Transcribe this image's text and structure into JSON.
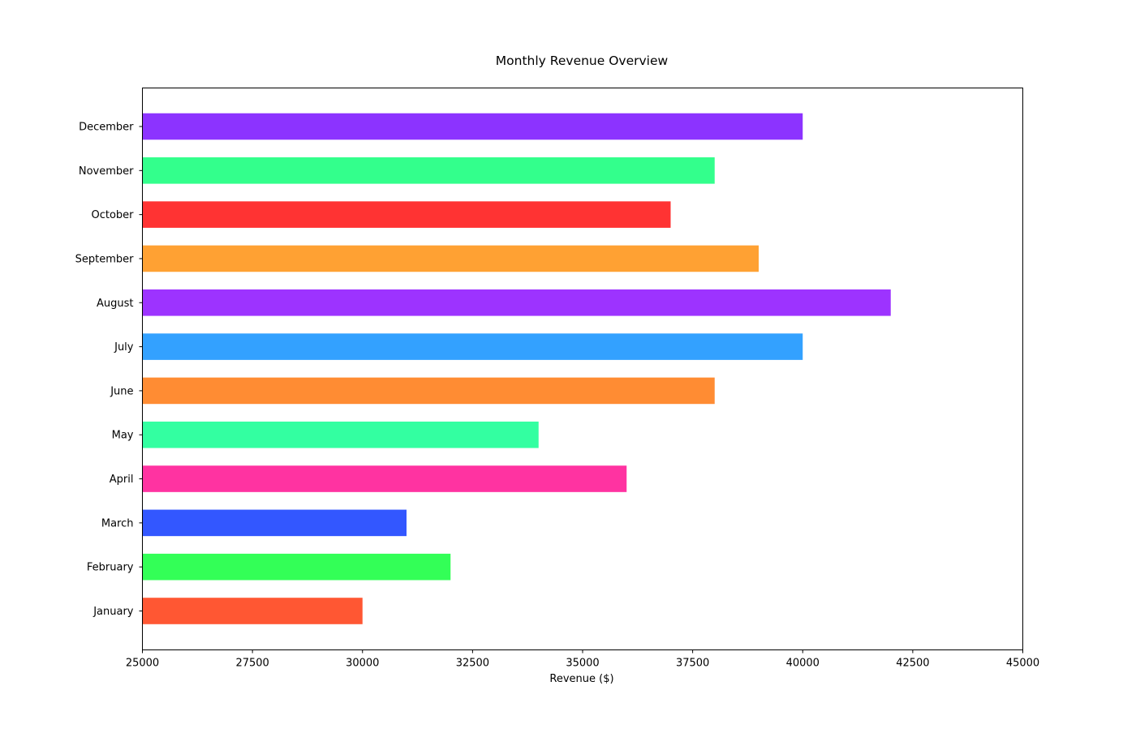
{
  "chart_data": {
    "type": "bar",
    "orientation": "horizontal",
    "title": "Monthly Revenue Overview",
    "xlabel": "Revenue ($)",
    "ylabel": "",
    "xlim": [
      25000,
      45000
    ],
    "xticks": [
      25000,
      27500,
      30000,
      32500,
      35000,
      37500,
      40000,
      42500,
      45000
    ],
    "grid": false,
    "categories": [
      "January",
      "February",
      "March",
      "April",
      "May",
      "June",
      "July",
      "August",
      "September",
      "October",
      "November",
      "December"
    ],
    "values": [
      30000,
      32000,
      31000,
      36000,
      34000,
      38000,
      40000,
      42000,
      39000,
      37000,
      38000,
      40000
    ],
    "colors": [
      "#ff5733",
      "#33ff57",
      "#3357ff",
      "#ff33a1",
      "#33ffa1",
      "#ff8c33",
      "#33a1ff",
      "#9d33ff",
      "#ffa133",
      "#ff3333",
      "#33ff8c",
      "#8c33ff"
    ]
  }
}
